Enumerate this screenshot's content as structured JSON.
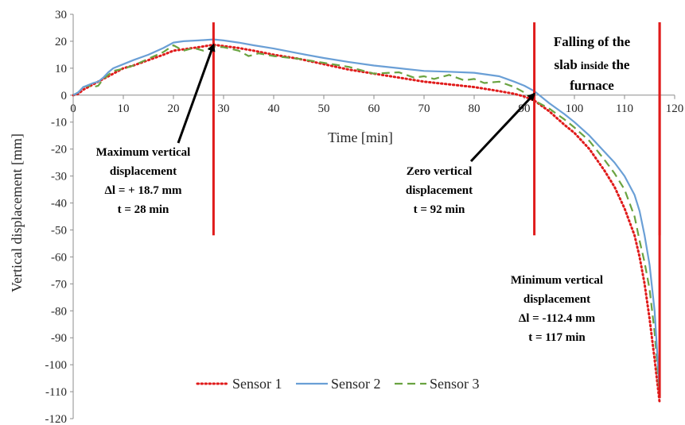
{
  "chart_data": {
    "type": "line",
    "title": "",
    "xlabel": "Time [min]",
    "ylabel": "Vertical displacement [mm]",
    "xlim": [
      0,
      120
    ],
    "ylim": [
      -120,
      30
    ],
    "x_ticks": [
      "0",
      "10",
      "20",
      "30",
      "40",
      "50",
      "60",
      "70",
      "80",
      "90",
      "100",
      "110",
      "120"
    ],
    "y_ticks": [
      "30",
      "20",
      "10",
      "0",
      "-10",
      "-20",
      "-30",
      "-40",
      "-50",
      "-60",
      "-70",
      "-80",
      "-90",
      "-100",
      "-110",
      "-120"
    ],
    "grid": false,
    "legend_position": "bottom",
    "series": [
      {
        "name": "Sensor 1",
        "color": "#e01b1b",
        "style": "dotted",
        "x": [
          0,
          1,
          2,
          4,
          6,
          8,
          10,
          12,
          15,
          18,
          20,
          22,
          25,
          28,
          30,
          33,
          36,
          40,
          45,
          50,
          55,
          60,
          65,
          70,
          75,
          80,
          85,
          88,
          90,
          92,
          95,
          98,
          100,
          103,
          106,
          108,
          110,
          112,
          113,
          114,
          115,
          116,
          117
        ],
        "y": [
          0,
          0.5,
          2,
          4,
          6,
          8,
          10,
          11,
          13,
          15,
          16.5,
          17,
          17.8,
          18.7,
          18.2,
          17.5,
          16.5,
          15,
          13.5,
          11.5,
          9.5,
          8,
          6.5,
          5,
          4,
          3,
          1.5,
          0.5,
          -0.5,
          -2,
          -6,
          -11,
          -14,
          -20,
          -28,
          -34,
          -42,
          -52,
          -60,
          -70,
          -83,
          -98,
          -114
        ]
      },
      {
        "name": "Sensor 2",
        "color": "#6a9fd6",
        "style": "solid",
        "x": [
          0,
          1,
          2,
          4,
          5,
          6,
          7,
          8,
          10,
          12,
          15,
          18,
          20,
          22,
          25,
          28,
          30,
          33,
          36,
          40,
          45,
          50,
          55,
          60,
          65,
          70,
          75,
          80,
          85,
          88,
          90,
          92,
          95,
          98,
          100,
          103,
          106,
          108,
          110,
          112,
          113,
          114,
          115,
          116,
          117
        ],
        "y": [
          0,
          1,
          3,
          4.5,
          5,
          6.5,
          8.5,
          10,
          11.5,
          13,
          15,
          17.5,
          19.5,
          20,
          20.3,
          20.7,
          20.3,
          19.5,
          18.5,
          17.3,
          15.5,
          13.8,
          12.3,
          11,
          10,
          9,
          8.7,
          8.3,
          7,
          5,
          3.5,
          1.5,
          -3,
          -7,
          -10,
          -15,
          -21,
          -25,
          -30,
          -37,
          -43,
          -52,
          -63,
          -80,
          -110
        ]
      },
      {
        "name": "Sensor 3",
        "color": "#6aa341",
        "style": "dashed",
        "x": [
          0,
          1,
          2,
          3,
          4,
          5,
          6,
          8,
          10,
          12,
          15,
          18,
          20,
          22,
          24,
          26,
          28,
          30,
          33,
          35,
          37,
          40,
          45,
          50,
          55,
          58,
          60,
          65,
          68,
          70,
          72,
          75,
          78,
          80,
          82,
          85,
          88,
          90,
          92,
          95,
          98,
          100,
          103,
          106,
          108,
          110,
          112,
          113,
          114,
          115,
          116,
          117
        ],
        "y": [
          0,
          1,
          3,
          3.5,
          3,
          3.5,
          6,
          9,
          9.8,
          11,
          13.5,
          16,
          18.5,
          16.5,
          17.5,
          16.5,
          18,
          17.8,
          16.5,
          14.5,
          15.5,
          14.5,
          13.5,
          12,
          10.5,
          9,
          8,
          8.5,
          6.5,
          7,
          6,
          7.5,
          5.5,
          6,
          4.5,
          5,
          3,
          1,
          -2,
          -5,
          -9,
          -12,
          -17,
          -24,
          -29,
          -35,
          -45,
          -54,
          -62,
          -72,
          -88,
          -111
        ]
      }
    ],
    "markers": {
      "color": "#e01b1b",
      "x": [
        28,
        92,
        117
      ],
      "y_range": [
        -52,
        27
      ]
    },
    "annotations": {
      "left": {
        "lines": [
          "Maximum vertical",
          "displacement",
          "Δl = + 18.7 mm",
          "t = 28 min"
        ],
        "arrow_to": [
          28,
          18.7
        ]
      },
      "middle": {
        "lines": [
          "Zero vertical",
          "displacement",
          "t = 92 min"
        ],
        "arrow_to": [
          92,
          0.5
        ]
      },
      "right": {
        "lines": [
          "Minimum vertical",
          "displacement",
          "Δl =  -112.4 mm",
          "t = 117 min"
        ]
      },
      "top_right": {
        "line1": "Falling of the",
        "line2_a": "slab",
        "line2_b": "inside",
        "line2_c": "the",
        "line3": "furnace"
      }
    }
  }
}
